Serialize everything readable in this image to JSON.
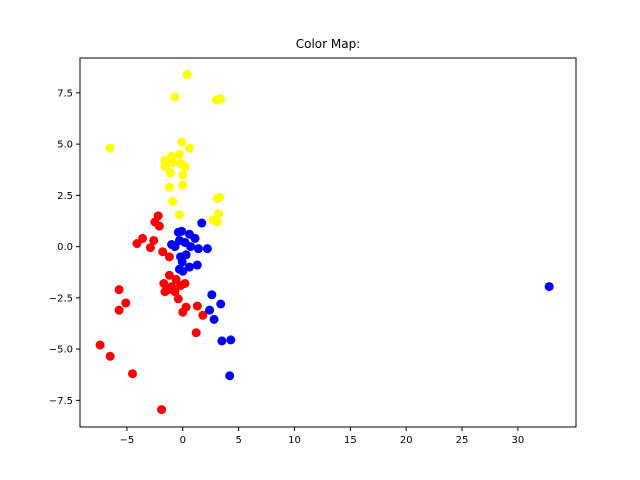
{
  "chart_data": {
    "type": "scatter",
    "title": "Color Map:",
    "xlabel": "",
    "ylabel": "",
    "xlim": [
      -9.2,
      35.2
    ],
    "ylim": [
      -8.8,
      9.2
    ],
    "xticks": [
      -5,
      0,
      5,
      10,
      15,
      20,
      25,
      30
    ],
    "yticks": [
      -7.5,
      -5.0,
      -2.5,
      0.0,
      2.5,
      5.0,
      7.5
    ],
    "xtick_labels": [
      "−5",
      "0",
      "5",
      "10",
      "15",
      "20",
      "25",
      "30"
    ],
    "ytick_labels": [
      "−7.5",
      "−5.0",
      "−2.5",
      "0.0",
      "2.5",
      "5.0",
      "7.5"
    ],
    "grid": false,
    "legend": "none",
    "series": [
      {
        "color": "#ffff00",
        "points": [
          [
            0.4,
            8.4
          ],
          [
            -0.7,
            7.3
          ],
          [
            3.0,
            7.15
          ],
          [
            3.4,
            7.2
          ],
          [
            -6.5,
            4.8
          ],
          [
            -0.1,
            5.1
          ],
          [
            0.6,
            4.8
          ],
          [
            -1.0,
            4.4
          ],
          [
            -0.3,
            4.5
          ],
          [
            -1.6,
            4.2
          ],
          [
            -0.9,
            4.1
          ],
          [
            -0.2,
            4.05
          ],
          [
            -1.6,
            3.9
          ],
          [
            0.2,
            3.9
          ],
          [
            -1.1,
            3.6
          ],
          [
            0.0,
            3.5
          ],
          [
            -1.2,
            2.9
          ],
          [
            0.0,
            3.0
          ],
          [
            3.3,
            2.4
          ],
          [
            3.1,
            2.35
          ],
          [
            -0.9,
            2.2
          ],
          [
            3.2,
            1.6
          ],
          [
            -0.3,
            1.55
          ],
          [
            2.7,
            1.3
          ],
          [
            3.1,
            1.2
          ]
        ]
      },
      {
        "color": "#ff0000",
        "points": [
          [
            -2.2,
            1.5
          ],
          [
            -2.5,
            1.2
          ],
          [
            -2.1,
            1.0
          ],
          [
            -3.6,
            0.4
          ],
          [
            -2.6,
            0.3
          ],
          [
            -4.1,
            0.15
          ],
          [
            -2.9,
            -0.05
          ],
          [
            -1.8,
            -0.25
          ],
          [
            -1.2,
            -0.5
          ],
          [
            -1.2,
            -1.4
          ],
          [
            -0.6,
            -1.6
          ],
          [
            -1.7,
            -1.8
          ],
          [
            -1.0,
            -1.95
          ],
          [
            0.2,
            -1.8
          ],
          [
            -0.2,
            -1.9
          ],
          [
            -1.3,
            -2.1
          ],
          [
            -1.6,
            -2.2
          ],
          [
            -0.7,
            -2.2
          ],
          [
            -0.4,
            -2.55
          ],
          [
            -5.7,
            -2.1
          ],
          [
            -5.1,
            -2.75
          ],
          [
            -5.7,
            -3.1
          ],
          [
            0.3,
            -2.95
          ],
          [
            0.0,
            -3.2
          ],
          [
            1.3,
            -2.9
          ],
          [
            1.8,
            -3.35
          ],
          [
            1.2,
            -4.2
          ],
          [
            -7.4,
            -4.8
          ],
          [
            -6.5,
            -5.35
          ],
          [
            -4.5,
            -6.2
          ],
          [
            -1.9,
            -7.95
          ]
        ]
      },
      {
        "color": "#0000ff",
        "points": [
          [
            -0.4,
            0.7
          ],
          [
            -0.1,
            0.75
          ],
          [
            0.6,
            0.6
          ],
          [
            1.7,
            1.15
          ],
          [
            -1.0,
            0.1
          ],
          [
            -0.3,
            0.3
          ],
          [
            0.2,
            0.2
          ],
          [
            1.1,
            0.4
          ],
          [
            0.7,
            0.0
          ],
          [
            1.4,
            -0.1
          ],
          [
            2.2,
            -0.1
          ],
          [
            -0.7,
            0.0
          ],
          [
            0.3,
            -0.4
          ],
          [
            -0.2,
            -0.5
          ],
          [
            -0.05,
            -0.75
          ],
          [
            0.6,
            -1.0
          ],
          [
            1.3,
            -0.9
          ],
          [
            -0.3,
            -1.1
          ],
          [
            0.0,
            -1.2
          ],
          [
            2.6,
            -2.35
          ],
          [
            3.4,
            -2.8
          ],
          [
            2.4,
            -3.1
          ],
          [
            2.8,
            -3.55
          ],
          [
            3.5,
            -4.6
          ],
          [
            4.3,
            -4.55
          ],
          [
            4.2,
            -6.3
          ],
          [
            32.8,
            -1.95
          ]
        ]
      }
    ]
  }
}
